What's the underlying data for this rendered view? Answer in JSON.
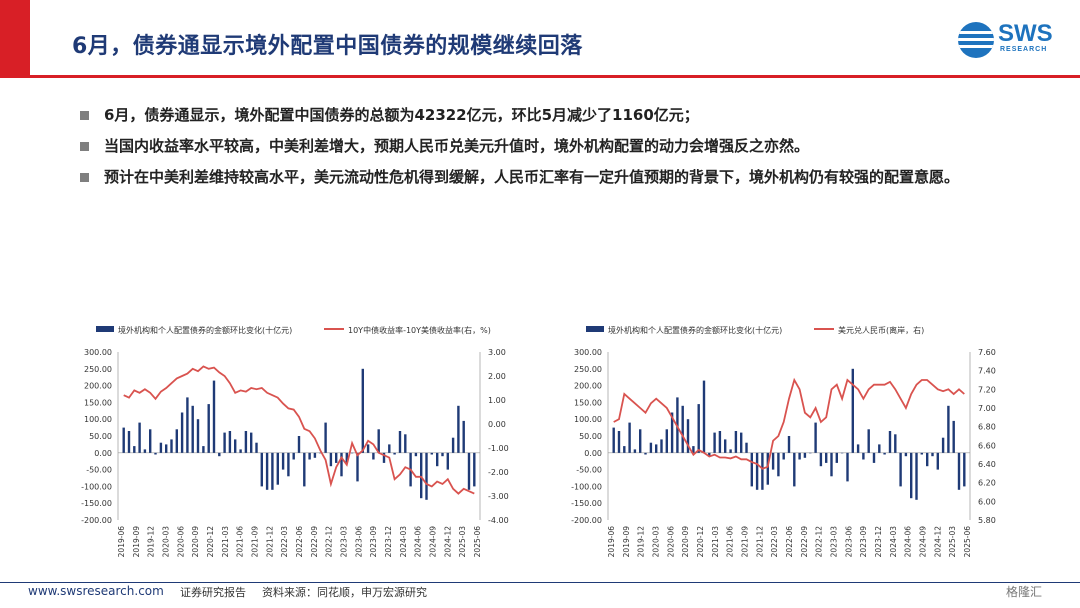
{
  "header": {
    "title": "6月，债券通显示境外配置中国债券的规模继续回落",
    "logo_text": "SWS",
    "logo_sub": "RESEARCH",
    "accent_color": "#d81f26",
    "title_color": "#1f3a76"
  },
  "bullets": [
    "6月，债券通显示，境外配置中国债券的总额为42322亿元，环比5月减少了1160亿元；",
    "当国内收益率水平较高，中美利差增大，预期人民币兑美元升值时，境外机构配置的动力会增强反之亦然。",
    "预计在中美利差维持较高水平，美元流动性危机得到缓解，人民币汇率有一定升值预期的背景下，境外机构仍有较强的配置意愿。"
  ],
  "footer": {
    "url": "www.swsresearch.com",
    "note": "证券研究报告",
    "source": "资料来源：同花顺，申万宏源研究",
    "watermark": "格隆汇"
  },
  "chart_data": [
    {
      "type": "bar+line",
      "legend": [
        "境外机构和个人配置债券的金额环比变化(十亿元)",
        "10Y中债收益率-10Y美债收益率(右，%)"
      ],
      "ylim": [
        -200,
        300
      ],
      "yticks": [
        "300.00",
        "250.00",
        "200.00",
        "150.00",
        "100.00",
        "50.00",
        "0.00",
        "-50.00",
        "-100.00",
        "-150.00",
        "-200.00"
      ],
      "y2lim": [
        -4,
        3
      ],
      "y2ticks": [
        "3.00",
        "2.00",
        "1.00",
        "0.00",
        "-1.00",
        "-2.00",
        "-3.00",
        "-4.00"
      ],
      "xticks": [
        "2019-06",
        "2019-09",
        "2019-12",
        "2020-03",
        "2020-06",
        "2020-09",
        "2020-12",
        "2021-03",
        "2021-06",
        "2021-09",
        "2021-12",
        "2022-03",
        "2022-06",
        "2022-09",
        "2022-12",
        "2023-03",
        "2023-06",
        "2023-09",
        "2023-12",
        "2024-03",
        "2024-06",
        "2024-09",
        "2024-12",
        "2025-03",
        "2025-06"
      ],
      "bars": [
        75,
        65,
        20,
        90,
        10,
        70,
        -5,
        30,
        25,
        40,
        70,
        120,
        165,
        140,
        100,
        20,
        145,
        215,
        -10,
        60,
        65,
        40,
        10,
        65,
        60,
        30,
        -100,
        -110,
        -110,
        -95,
        -50,
        -70,
        -20,
        50,
        -100,
        -20,
        -15,
        0,
        90,
        -40,
        -30,
        -70,
        -30,
        0,
        -85,
        250,
        25,
        -20,
        70,
        -30,
        25,
        -5,
        65,
        55,
        -100,
        -10,
        -135,
        -140,
        -5,
        -40,
        -10,
        -50,
        45,
        140,
        95,
        -110,
        -100
      ],
      "line": [
        1.2,
        1.1,
        1.4,
        1.3,
        1.45,
        1.3,
        1.05,
        1.35,
        1.5,
        1.7,
        1.9,
        2.0,
        2.1,
        2.3,
        2.2,
        2.4,
        2.3,
        2.35,
        2.15,
        2.0,
        1.7,
        1.3,
        1.4,
        1.35,
        1.5,
        1.45,
        1.5,
        1.3,
        1.2,
        1.1,
        0.85,
        0.65,
        0.6,
        0.3,
        -0.2,
        -0.3,
        -0.6,
        -1.1,
        -1.5,
        -2.5,
        -1.8,
        -1.4,
        -1.7,
        -0.8,
        -1.3,
        -1.1,
        -0.7,
        -0.85,
        -1.2,
        -1.3,
        -1.4,
        -2.3,
        -2.1,
        -1.8,
        -1.9,
        -2.2,
        -2.2,
        -2.5,
        -2.6,
        -2.4,
        -2.5,
        -2.3,
        -2.7,
        -2.9,
        -2.7,
        -2.8,
        -2.9
      ]
    },
    {
      "type": "bar+line",
      "legend": [
        "境外机构和个人配置债券的金额环比变化(十亿元)",
        "美元兑人民币(离岸，右)"
      ],
      "ylim": [
        -200,
        300
      ],
      "yticks": [
        "300.00",
        "250.00",
        "200.00",
        "150.00",
        "100.00",
        "50.00",
        "0.00",
        "-50.00",
        "-100.00",
        "-150.00",
        "-200.00"
      ],
      "y2lim": [
        5.8,
        7.6
      ],
      "y2ticks": [
        "7.60",
        "7.40",
        "7.20",
        "7.00",
        "6.80",
        "6.60",
        "6.40",
        "6.20",
        "6.00",
        "5.80"
      ],
      "xticks": [
        "2019-06",
        "2019-09",
        "2019-12",
        "2020-03",
        "2020-06",
        "2020-09",
        "2020-12",
        "2021-03",
        "2021-06",
        "2021-09",
        "2021-12",
        "2022-03",
        "2022-06",
        "2022-09",
        "2022-12",
        "2023-03",
        "2023-06",
        "2023-09",
        "2023-12",
        "2024-03",
        "2024-06",
        "2024-09",
        "2024-12",
        "2025-03",
        "2025-06"
      ],
      "bars": [
        75,
        65,
        20,
        90,
        10,
        70,
        -5,
        30,
        25,
        40,
        70,
        120,
        165,
        140,
        100,
        20,
        145,
        215,
        -10,
        60,
        65,
        40,
        10,
        65,
        60,
        30,
        -100,
        -110,
        -110,
        -95,
        -50,
        -70,
        -20,
        50,
        -100,
        -20,
        -15,
        0,
        90,
        -40,
        -30,
        -70,
        -30,
        0,
        -85,
        250,
        25,
        -20,
        70,
        -30,
        25,
        -5,
        65,
        55,
        -100,
        -10,
        -135,
        -140,
        -5,
        -40,
        -10,
        -50,
        45,
        140,
        95,
        -110,
        -100
      ],
      "line": [
        6.85,
        6.88,
        7.15,
        7.1,
        7.05,
        7.0,
        6.95,
        7.05,
        7.1,
        7.05,
        7.0,
        6.9,
        6.8,
        6.7,
        6.6,
        6.5,
        6.55,
        6.52,
        6.48,
        6.5,
        6.47,
        6.47,
        6.46,
        6.48,
        6.45,
        6.45,
        6.42,
        6.4,
        6.35,
        6.37,
        6.65,
        6.7,
        6.85,
        7.1,
        7.3,
        7.2,
        6.95,
        6.9,
        7.0,
        6.85,
        6.9,
        7.2,
        7.25,
        7.1,
        7.3,
        7.25,
        7.2,
        7.1,
        7.2,
        7.25,
        7.25,
        7.25,
        7.28,
        7.2,
        7.1,
        7.0,
        7.15,
        7.25,
        7.3,
        7.3,
        7.25,
        7.2,
        7.18,
        7.2,
        7.15,
        7.2,
        7.15
      ]
    }
  ]
}
